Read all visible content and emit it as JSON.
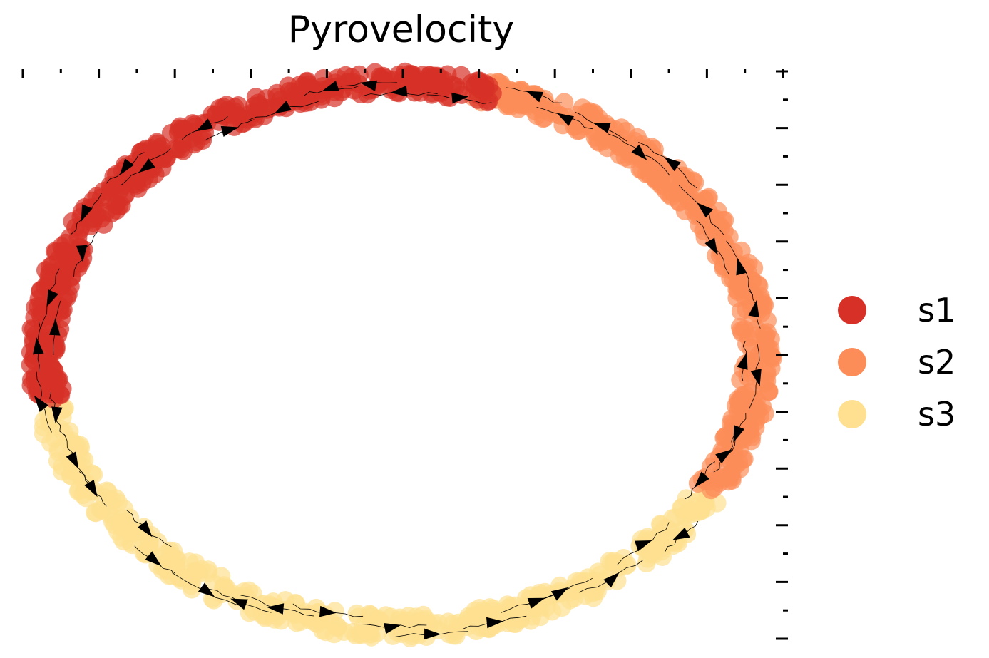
{
  "chart_data": {
    "type": "scatter",
    "subtype": "velocity-streamplot",
    "title": "Pyrovelocity",
    "xlabel": "",
    "ylabel": "",
    "xlim": [
      -1.05,
      1.05
    ],
    "ylim": [
      -1.02,
      1.02
    ],
    "ellipse": {
      "cx": 0.0,
      "cy": 0.0,
      "rx": 1.0,
      "ry": 1.0
    },
    "series": [
      {
        "name": "s1",
        "color": "#d73027",
        "angle_range_deg": [
          75,
          190
        ]
      },
      {
        "name": "s2",
        "color": "#fc8d59",
        "angle_range_deg": [
          -30,
          78
        ]
      },
      {
        "name": "s3",
        "color": "#fee090",
        "angle_range_deg": [
          190,
          330
        ]
      }
    ],
    "grid": false,
    "legend_position": "right"
  },
  "legend": {
    "items": [
      {
        "label": "s1",
        "color": "#d73027"
      },
      {
        "label": "s2",
        "color": "#fc8d59"
      },
      {
        "label": "s3",
        "color": "#fee090"
      }
    ]
  }
}
